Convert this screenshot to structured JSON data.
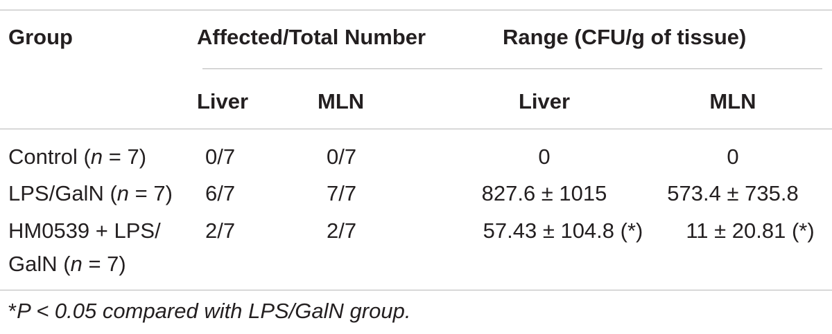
{
  "table": {
    "headers": {
      "group": "Group",
      "affected_total": "Affected/Total Number",
      "range": "Range (CFU/g of tissue)"
    },
    "subheaders": {
      "liver_count": "Liver",
      "mln_count": "MLN",
      "liver_range": "Liver",
      "mln_range": "MLN"
    },
    "rows": [
      {
        "group_name": "Control (",
        "group_n_var": "n",
        "group_n_val": " = 7)",
        "liver": "0/7",
        "mln": "0/7",
        "liver_range": "0",
        "mln_range": "0"
      },
      {
        "group_name": "LPS/GalN (",
        "group_n_var": "n",
        "group_n_val": " = 7)",
        "liver": "6/7",
        "mln": "7/7",
        "liver_range": "827.6 ± 1015",
        "mln_range": "573.4 ± 735.8"
      },
      {
        "group_line1": "HM0539 + LPS/",
        "group_line2_pre": "GalN (",
        "group_n_var": "n",
        "group_n_val": " = 7)",
        "liver": "2/7",
        "mln": "2/7",
        "liver_range": "57.43 ± 104.8 (*)",
        "mln_range": "11 ± 20.81 (*)"
      }
    ],
    "footnote": {
      "asterisk": "*",
      "text": "P < 0.05 compared with LPS/GalN group."
    }
  }
}
